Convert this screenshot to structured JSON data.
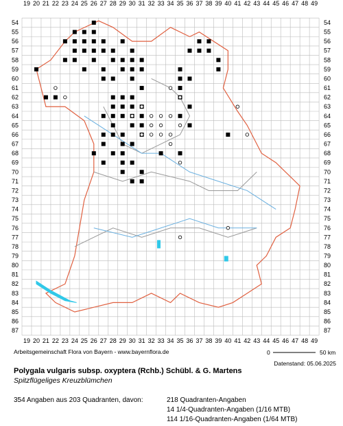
{
  "map": {
    "columns": [
      "19",
      "20",
      "21",
      "22",
      "23",
      "24",
      "25",
      "26",
      "27",
      "28",
      "29",
      "30",
      "31",
      "32",
      "33",
      "34",
      "35",
      "36",
      "37",
      "38",
      "39",
      "40",
      "41",
      "42",
      "43",
      "44",
      "45",
      "46",
      "47",
      "48",
      "49"
    ],
    "rows": [
      "54",
      "55",
      "56",
      "57",
      "58",
      "59",
      "60",
      "61",
      "62",
      "63",
      "64",
      "65",
      "66",
      "67",
      "68",
      "69",
      "70",
      "71",
      "72",
      "73",
      "74",
      "75",
      "76",
      "77",
      "78",
      "79",
      "80",
      "81",
      "82",
      "83",
      "84",
      "85",
      "86",
      "87"
    ],
    "credit": "Arbeitsgemeinschaft Flora von Bayern - www.bayernflora.de",
    "scale_start": "0",
    "scale_end": "50 km",
    "date": "Datenstand: 05.06.2025"
  },
  "species": {
    "scientific": "Polygala vulgaris subsp. oxyptera (Rchb.) Schübl. & G. Martens",
    "common": "Spitzflügeliges Kreuzblümchen"
  },
  "stats": {
    "summary": "354 Angaben aus 203 Quadranten, davon:",
    "breakdown": [
      "218 Quadranten-Angaben",
      "14 1/4-Quadranten-Angaben (1/16 MTB)",
      "114 1/16-Quadranten-Angaben (1/64 MTB)"
    ]
  }
}
